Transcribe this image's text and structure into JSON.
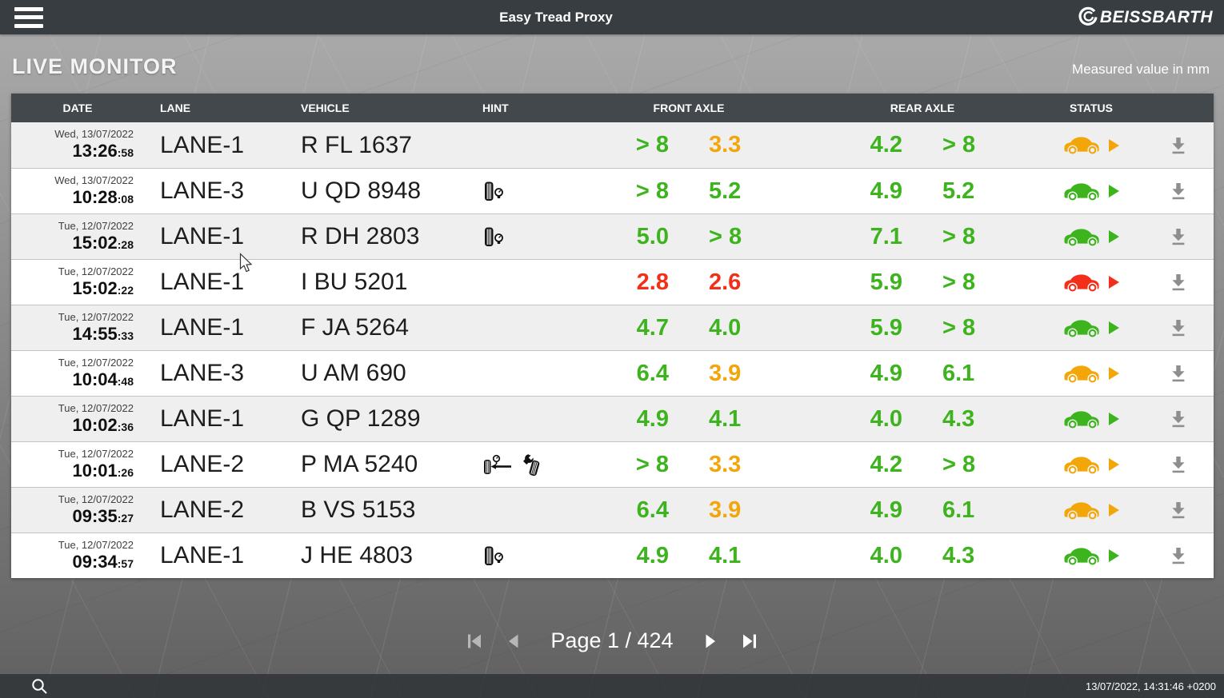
{
  "topbar": {
    "title": "Easy Tread Proxy",
    "brand": "BEISSBARTH"
  },
  "page": {
    "heading": "LIVE MONITOR",
    "unit_note": "Measured value in mm"
  },
  "colors": {
    "green": "#3DB41E",
    "amber": "#F2A60A",
    "red": "#F2301A",
    "download_gray": "#8E8E8E"
  },
  "table": {
    "columns": [
      "DATE",
      "LANE",
      "VEHICLE",
      "HINT",
      "FRONT AXLE",
      "REAR AXLE",
      "STATUS"
    ],
    "rows": [
      {
        "date": "Wed, 13/07/2022",
        "time": "13:26",
        "seconds": ":58",
        "lane": "LANE-1",
        "vehicle": "R FL 1637",
        "hints": [],
        "front": [
          {
            "value": "> 8",
            "level": "green"
          },
          {
            "value": "3.3",
            "level": "amber"
          }
        ],
        "rear": [
          {
            "value": "4.2",
            "level": "green"
          },
          {
            "value": "> 8",
            "level": "green"
          }
        ],
        "status": "amber"
      },
      {
        "date": "Wed, 13/07/2022",
        "time": "10:28",
        "seconds": ":08",
        "lane": "LANE-3",
        "vehicle": "U QD 8948",
        "hints": [
          "tire_pressure"
        ],
        "front": [
          {
            "value": "> 8",
            "level": "green"
          },
          {
            "value": "5.2",
            "level": "green"
          }
        ],
        "rear": [
          {
            "value": "4.9",
            "level": "green"
          },
          {
            "value": "5.2",
            "level": "green"
          }
        ],
        "status": "green"
      },
      {
        "date": "Tue, 12/07/2022",
        "time": "15:02",
        "seconds": ":28",
        "lane": "LANE-1",
        "vehicle": "R DH 2803",
        "hints": [
          "tire_pressure"
        ],
        "front": [
          {
            "value": "5.0",
            "level": "green"
          },
          {
            "value": "> 8",
            "level": "green"
          }
        ],
        "rear": [
          {
            "value": "7.1",
            "level": "green"
          },
          {
            "value": "> 8",
            "level": "green"
          }
        ],
        "status": "green"
      },
      {
        "date": "Tue, 12/07/2022",
        "time": "15:02",
        "seconds": ":22",
        "lane": "LANE-1",
        "vehicle": "I BU 5201",
        "hints": [],
        "front": [
          {
            "value": "2.8",
            "level": "red"
          },
          {
            "value": "2.6",
            "level": "red"
          }
        ],
        "rear": [
          {
            "value": "5.9",
            "level": "green"
          },
          {
            "value": "> 8",
            "level": "green"
          }
        ],
        "status": "red"
      },
      {
        "date": "Tue, 12/07/2022",
        "time": "14:55",
        "seconds": ":33",
        "lane": "LANE-1",
        "vehicle": "F JA 5264",
        "hints": [],
        "front": [
          {
            "value": "4.7",
            "level": "green"
          },
          {
            "value": "4.0",
            "level": "green"
          }
        ],
        "rear": [
          {
            "value": "5.9",
            "level": "green"
          },
          {
            "value": "> 8",
            "level": "green"
          }
        ],
        "status": "green"
      },
      {
        "date": "Tue, 12/07/2022",
        "time": "10:04",
        "seconds": ":48",
        "lane": "LANE-3",
        "vehicle": "U AM 690",
        "hints": [],
        "front": [
          {
            "value": "6.4",
            "level": "green"
          },
          {
            "value": "3.9",
            "level": "amber"
          }
        ],
        "rear": [
          {
            "value": "4.9",
            "level": "green"
          },
          {
            "value": "6.1",
            "level": "green"
          }
        ],
        "status": "amber"
      },
      {
        "date": "Tue, 12/07/2022",
        "time": "10:02",
        "seconds": ":36",
        "lane": "LANE-1",
        "vehicle": "G QP 1289",
        "hints": [],
        "front": [
          {
            "value": "4.9",
            "level": "green"
          },
          {
            "value": "4.1",
            "level": "green"
          }
        ],
        "rear": [
          {
            "value": "4.0",
            "level": "green"
          },
          {
            "value": "4.3",
            "level": "green"
          }
        ],
        "status": "green"
      },
      {
        "date": "Tue, 12/07/2022",
        "time": "10:01",
        "seconds": ":26",
        "lane": "LANE-2",
        "vehicle": "P MA 5240",
        "hints": [
          "axle_pressure",
          "tire_service"
        ],
        "front": [
          {
            "value": "> 8",
            "level": "green"
          },
          {
            "value": "3.3",
            "level": "amber"
          }
        ],
        "rear": [
          {
            "value": "4.2",
            "level": "green"
          },
          {
            "value": "> 8",
            "level": "green"
          }
        ],
        "status": "amber"
      },
      {
        "date": "Tue, 12/07/2022",
        "time": "09:35",
        "seconds": ":27",
        "lane": "LANE-2",
        "vehicle": "B VS 5153",
        "hints": [],
        "front": [
          {
            "value": "6.4",
            "level": "green"
          },
          {
            "value": "3.9",
            "level": "amber"
          }
        ],
        "rear": [
          {
            "value": "4.9",
            "level": "green"
          },
          {
            "value": "6.1",
            "level": "green"
          }
        ],
        "status": "amber"
      },
      {
        "date": "Tue, 12/07/2022",
        "time": "09:34",
        "seconds": ":57",
        "lane": "LANE-1",
        "vehicle": "J HE 4803",
        "hints": [
          "tire_pressure"
        ],
        "front": [
          {
            "value": "4.9",
            "level": "green"
          },
          {
            "value": "4.1",
            "level": "green"
          }
        ],
        "rear": [
          {
            "value": "4.0",
            "level": "green"
          },
          {
            "value": "4.3",
            "level": "green"
          }
        ],
        "status": "green"
      }
    ]
  },
  "pagination": {
    "page_label": "Page 1 / 424"
  },
  "statusbar": {
    "timestamp": "13/07/2022, 14:31:46 +0200"
  }
}
